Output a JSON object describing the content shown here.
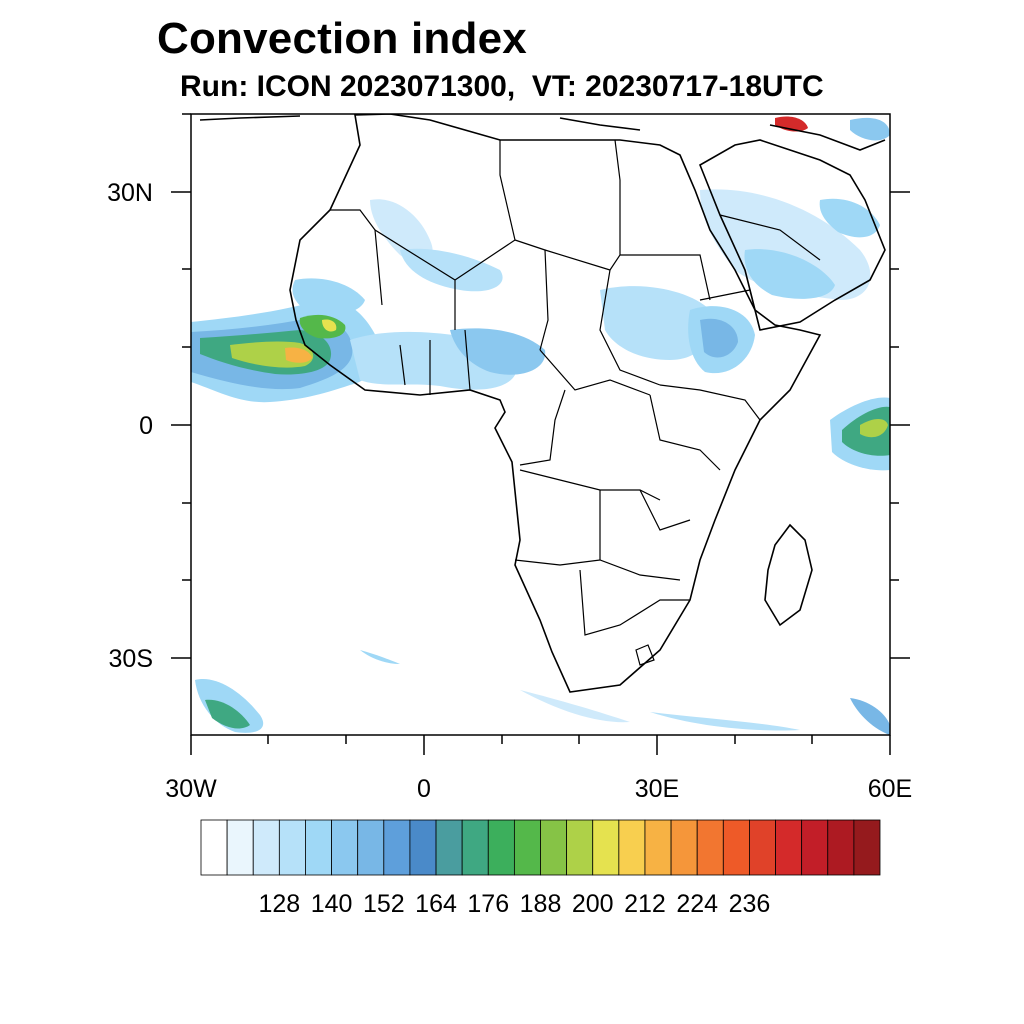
{
  "title": "Convection index",
  "subtitle": "Run: ICON 2023071300,  VT: 20230717-18UTC",
  "axes": {
    "lat_labels": [
      "30N",
      "0",
      "30S"
    ],
    "lon_labels": [
      "30W",
      "0",
      "30E",
      "60E"
    ]
  },
  "colorbar": {
    "labels": [
      "128",
      "140",
      "152",
      "164",
      "176",
      "188",
      "200",
      "212",
      "224",
      "236"
    ],
    "colors": [
      "#ffffff",
      "#eaf6fd",
      "#cfeafb",
      "#b6e1f9",
      "#9fd8f6",
      "#8bc8ef",
      "#78b7e6",
      "#5e9fdb",
      "#4a8ac9",
      "#4a9d9f",
      "#3fa882",
      "#3caf5c",
      "#54b84a",
      "#86c346",
      "#aed148",
      "#e5e24f",
      "#f8cf4f",
      "#f7b244",
      "#f5963a",
      "#f27630",
      "#ee5a28",
      "#e04229",
      "#d42a2a",
      "#c21e28",
      "#ad1a22",
      "#951a1d"
    ]
  },
  "map": {
    "region": "Africa and Arabian Peninsula",
    "extent": {
      "lon": [
        -30,
        60
      ],
      "lat": [
        -40,
        40
      ]
    }
  }
}
